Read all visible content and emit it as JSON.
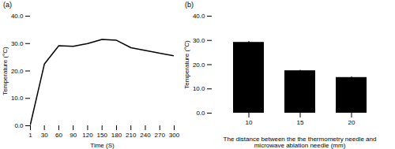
{
  "chart_data": [
    {
      "type": "line",
      "title": "(a)",
      "x": [
        1,
        30,
        60,
        90,
        120,
        150,
        180,
        210,
        240,
        270,
        300
      ],
      "values": [
        0.5,
        22.5,
        29.2,
        29.0,
        30.0,
        31.5,
        31.2,
        28.5,
        27.5,
        26.5,
        25.5
      ],
      "xlabel": "Time (S)",
      "ylabel": "Temperature (°C)",
      "xlim": [
        1,
        300
      ],
      "xticks": [
        1,
        30,
        60,
        90,
        120,
        150,
        180,
        210,
        240,
        270,
        300
      ],
      "ylim": [
        0,
        40
      ],
      "yticks": [
        {
          "value": 0,
          "label": "0.0"
        },
        {
          "value": 10,
          "label": "10.0"
        },
        {
          "value": 20,
          "label": "20.0"
        },
        {
          "value": 30,
          "label": "30.0"
        },
        {
          "value": 40,
          "label": "40.0"
        }
      ]
    },
    {
      "type": "bar",
      "title": "(b)",
      "categories": [
        "10",
        "15",
        "20"
      ],
      "values": [
        29.2,
        17.5,
        14.7
      ],
      "errors": [
        0.4,
        0.2,
        0.3
      ],
      "xlabel": "The distance between the the thermometry needle and\nmicrowave ablation needle (mm)",
      "ylabel": "Temperature (°C)",
      "ylim": [
        0,
        40
      ],
      "yticks": [
        {
          "value": 0,
          "label": "0.0"
        },
        {
          "value": 10,
          "label": "10.0"
        },
        {
          "value": 20,
          "label": "20.0"
        },
        {
          "value": 30,
          "label": "30.0"
        },
        {
          "value": 40,
          "label": "40.0"
        }
      ]
    }
  ]
}
